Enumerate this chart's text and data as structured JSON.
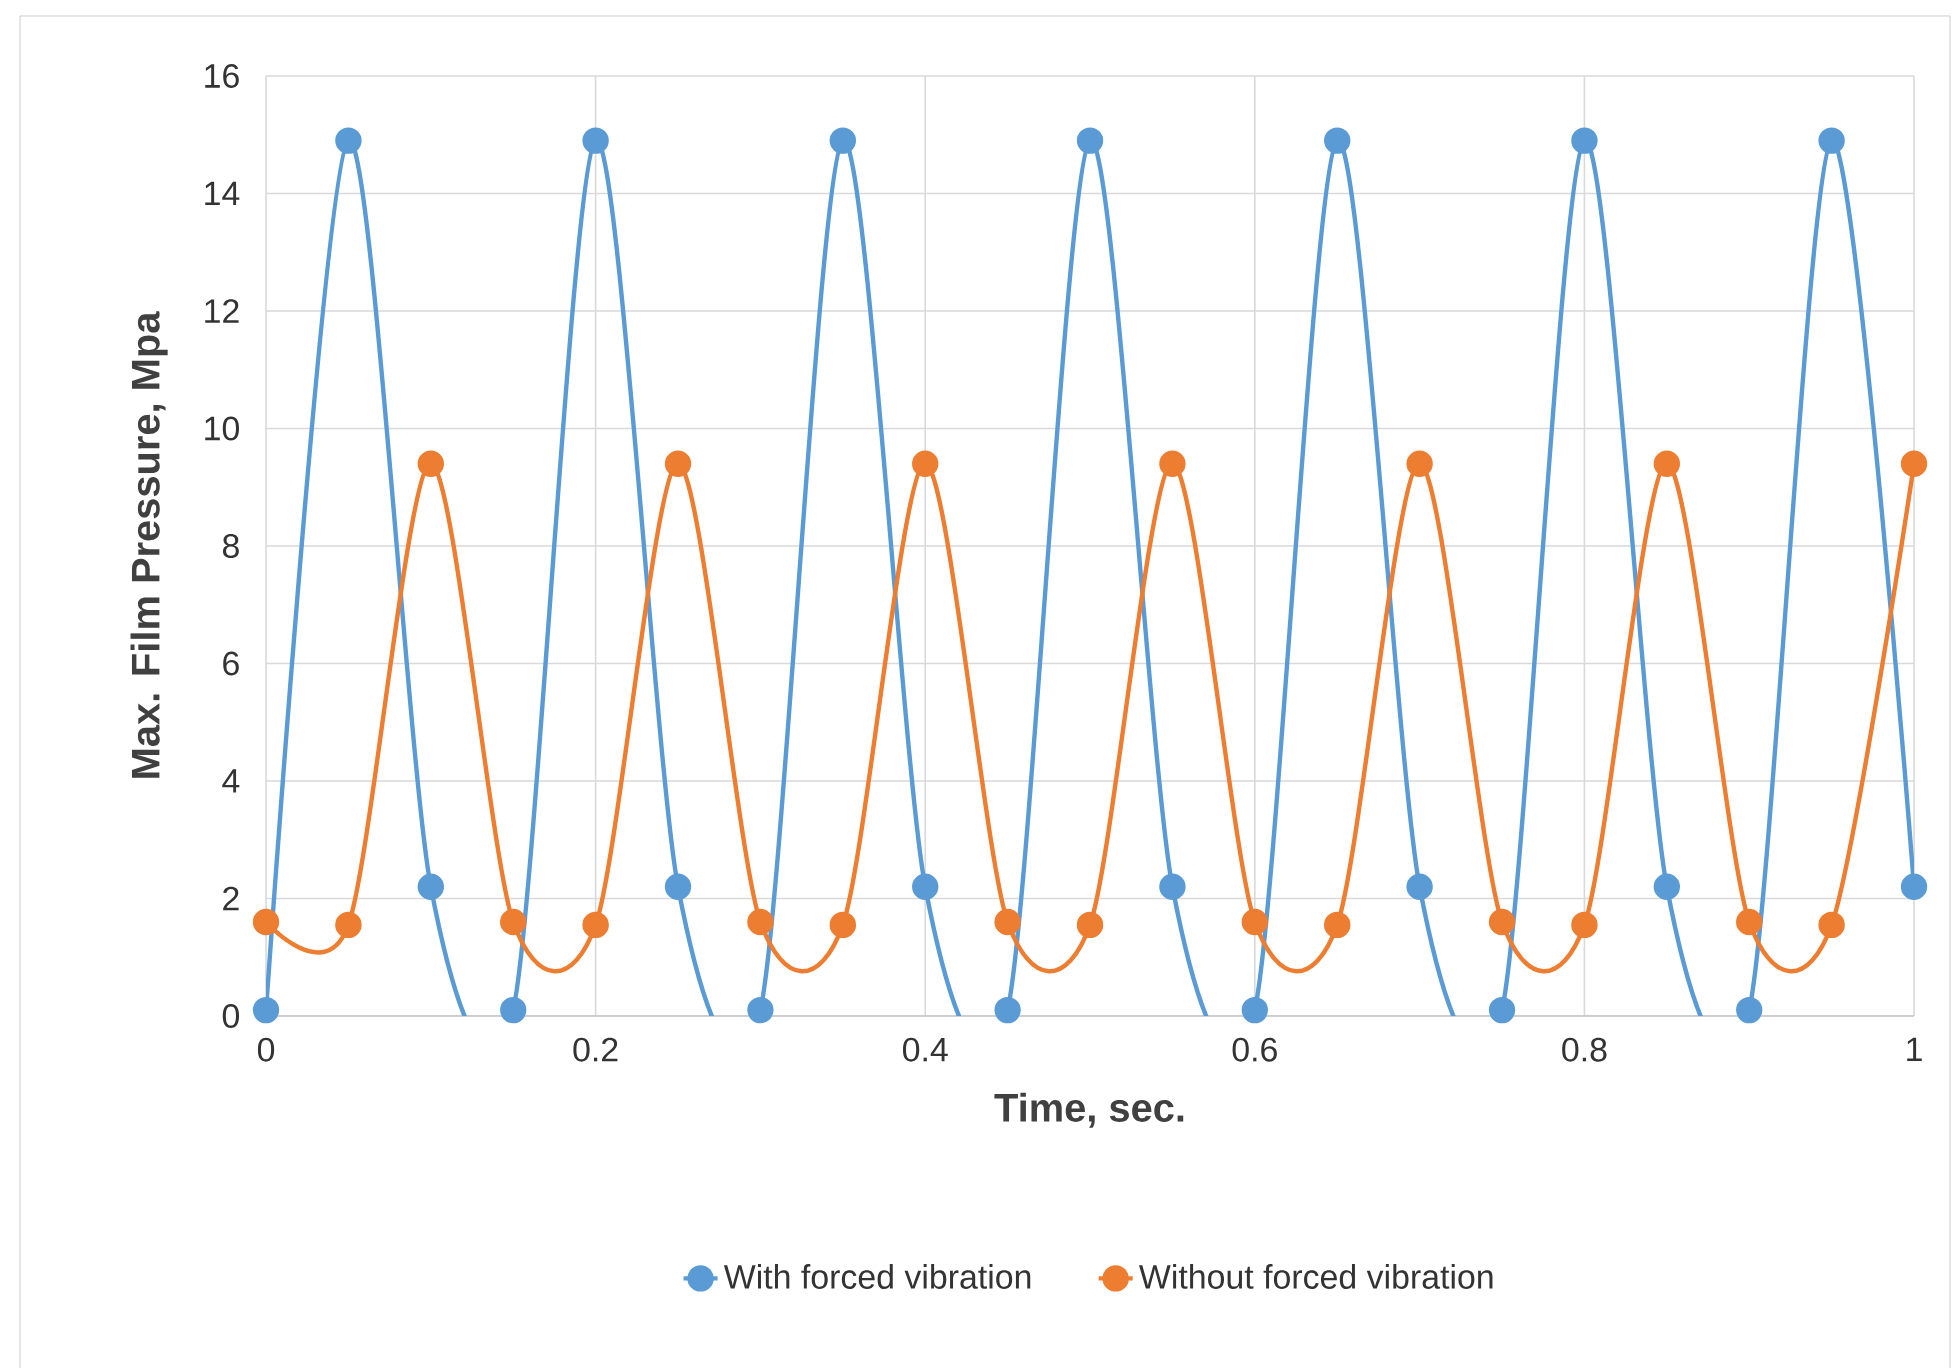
{
  "chart_data": {
    "type": "line",
    "xlabel": "Time, sec.",
    "ylabel": "Max. Film Pressure, Mpa",
    "x": [
      0,
      0.05,
      0.1,
      0.15,
      0.2,
      0.25,
      0.3,
      0.35,
      0.4,
      0.45,
      0.5,
      0.55,
      0.6,
      0.65,
      0.7,
      0.75,
      0.8,
      0.85,
      0.9,
      0.95,
      1
    ],
    "series": [
      {
        "name": "With forced vibration",
        "color": "#5b9bd5",
        "values": [
          0.1,
          14.9,
          2.2,
          0.1,
          14.9,
          2.2,
          0.1,
          14.9,
          2.2,
          0.1,
          14.9,
          2.2,
          0.1,
          14.9,
          2.2,
          0.1,
          14.9,
          2.2,
          0.1,
          14.9,
          2.2
        ]
      },
      {
        "name": "Without forced vibration",
        "color": "#ed7d31",
        "values": [
          1.6,
          1.55,
          9.4,
          1.6,
          1.55,
          9.4,
          1.6,
          1.55,
          9.4,
          1.6,
          1.55,
          9.4,
          1.6,
          1.55,
          9.4,
          1.6,
          1.55,
          9.4,
          1.6,
          1.55,
          9.4
        ]
      }
    ],
    "xlim": [
      0,
      1
    ],
    "ylim": [
      0,
      16
    ],
    "xticks": [
      0,
      0.2,
      0.4,
      0.6,
      0.8,
      1
    ],
    "yticks": [
      0,
      2,
      4,
      6,
      8,
      10,
      12,
      14,
      16
    ],
    "grid": true,
    "legend": "bottom",
    "marker": "circle",
    "line_style": "solid"
  }
}
